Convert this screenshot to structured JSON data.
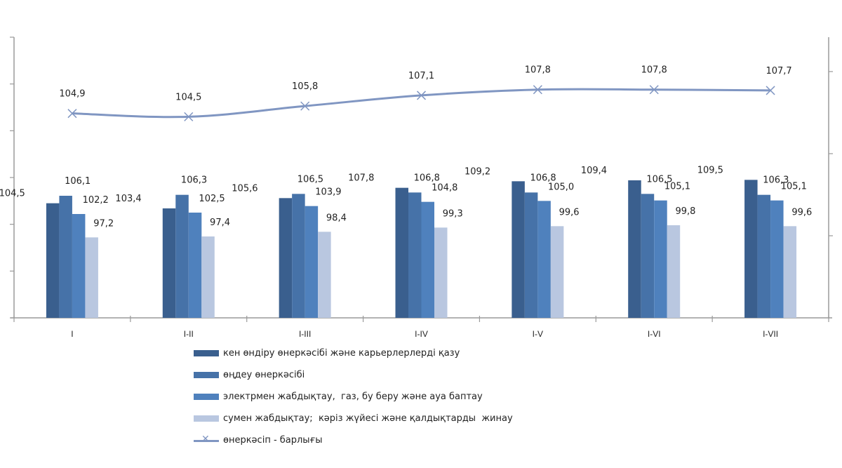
{
  "chart_data": {
    "type": "bar+line",
    "categories": [
      "I",
      "I-II",
      "I-III",
      "I-IV",
      "I-V",
      "I-VI",
      "I-VII"
    ],
    "series": [
      {
        "name": "кен өндіру өнеркәсібі және карьерлерлерді қазу",
        "type": "bar",
        "axis": "left",
        "color": "#3A5F8E",
        "values": [
          104.5,
          103.4,
          105.6,
          107.8,
          109.2,
          109.4,
          109.5
        ],
        "labels": [
          "104,5",
          "103,4",
          "105,6",
          "107,8",
          "109,2",
          "109,4",
          "109,5"
        ]
      },
      {
        "name": "өңдеу өнеркәсібі",
        "type": "bar",
        "axis": "left",
        "color": "#4672A8",
        "values": [
          106.1,
          106.3,
          106.5,
          106.8,
          106.8,
          106.5,
          106.3
        ],
        "labels": [
          "106,1",
          "106,3",
          "106,5",
          "106,8",
          "106,8",
          "106,5",
          "106,3"
        ]
      },
      {
        "name": "электрмен жабдықтау,  газ, бу беру және ауа баптау",
        "type": "bar",
        "axis": "left",
        "color": "#4F81BD",
        "values": [
          102.2,
          102.5,
          103.9,
          104.8,
          105.0,
          105.1,
          105.1
        ],
        "labels": [
          "102,2",
          "102,5",
          "103,9",
          "104,8",
          "105,0",
          "105,1",
          "105,1"
        ]
      },
      {
        "name": "сумен жабдықтау;  кәріз жүйесі және қалдықтарды  жинау",
        "type": "bar",
        "axis": "left",
        "color": "#B9C7E0",
        "values": [
          97.2,
          97.4,
          98.4,
          99.3,
          99.6,
          99.8,
          99.6
        ],
        "labels": [
          "97,2",
          "97,4",
          "98,4",
          "99,3",
          "99,6",
          "99,8",
          "99,6"
        ]
      },
      {
        "name": "өнеркәсіп - барлығы",
        "type": "line",
        "axis": "right",
        "color": "#8096C2",
        "marker": "x",
        "values": [
          104.9,
          104.5,
          105.8,
          107.1,
          107.8,
          107.8,
          107.7
        ],
        "labels": [
          "104,9",
          "104,5",
          "105,8",
          "107,1",
          "107,8",
          "107,8",
          "107,7"
        ]
      }
    ],
    "title": "",
    "xlabel": "",
    "ylabel": "",
    "ylim_left": [
      80,
      140
    ],
    "ylim_right": [
      80,
      114
    ],
    "left_tick_step": 10,
    "right_tick_step": 10,
    "tick_labels_shown": false,
    "grid": false,
    "legend_position": "bottom"
  }
}
